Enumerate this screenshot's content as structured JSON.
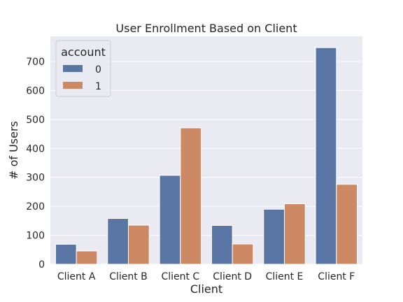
{
  "chart_data": {
    "type": "bar",
    "title": "User Enrollment Based on Client",
    "xlabel": "Client",
    "ylabel": "# of Users",
    "categories": [
      "Client A",
      "Client B",
      "Client C",
      "Client D",
      "Client E",
      "Client F"
    ],
    "series": [
      {
        "name": "0",
        "color": "#5875a4",
        "values": [
          69,
          158,
          307,
          134,
          190,
          748
        ]
      },
      {
        "name": "1",
        "color": "#cc8963",
        "values": [
          46,
          135,
          471,
          70,
          209,
          276
        ]
      }
    ],
    "ylim": [
      0,
      787
    ],
    "yticks": [
      0,
      100,
      200,
      300,
      400,
      500,
      600,
      700
    ],
    "grid": true,
    "legend": {
      "title": "account",
      "placement": "top-left"
    },
    "background": "#eaeaf2"
  }
}
